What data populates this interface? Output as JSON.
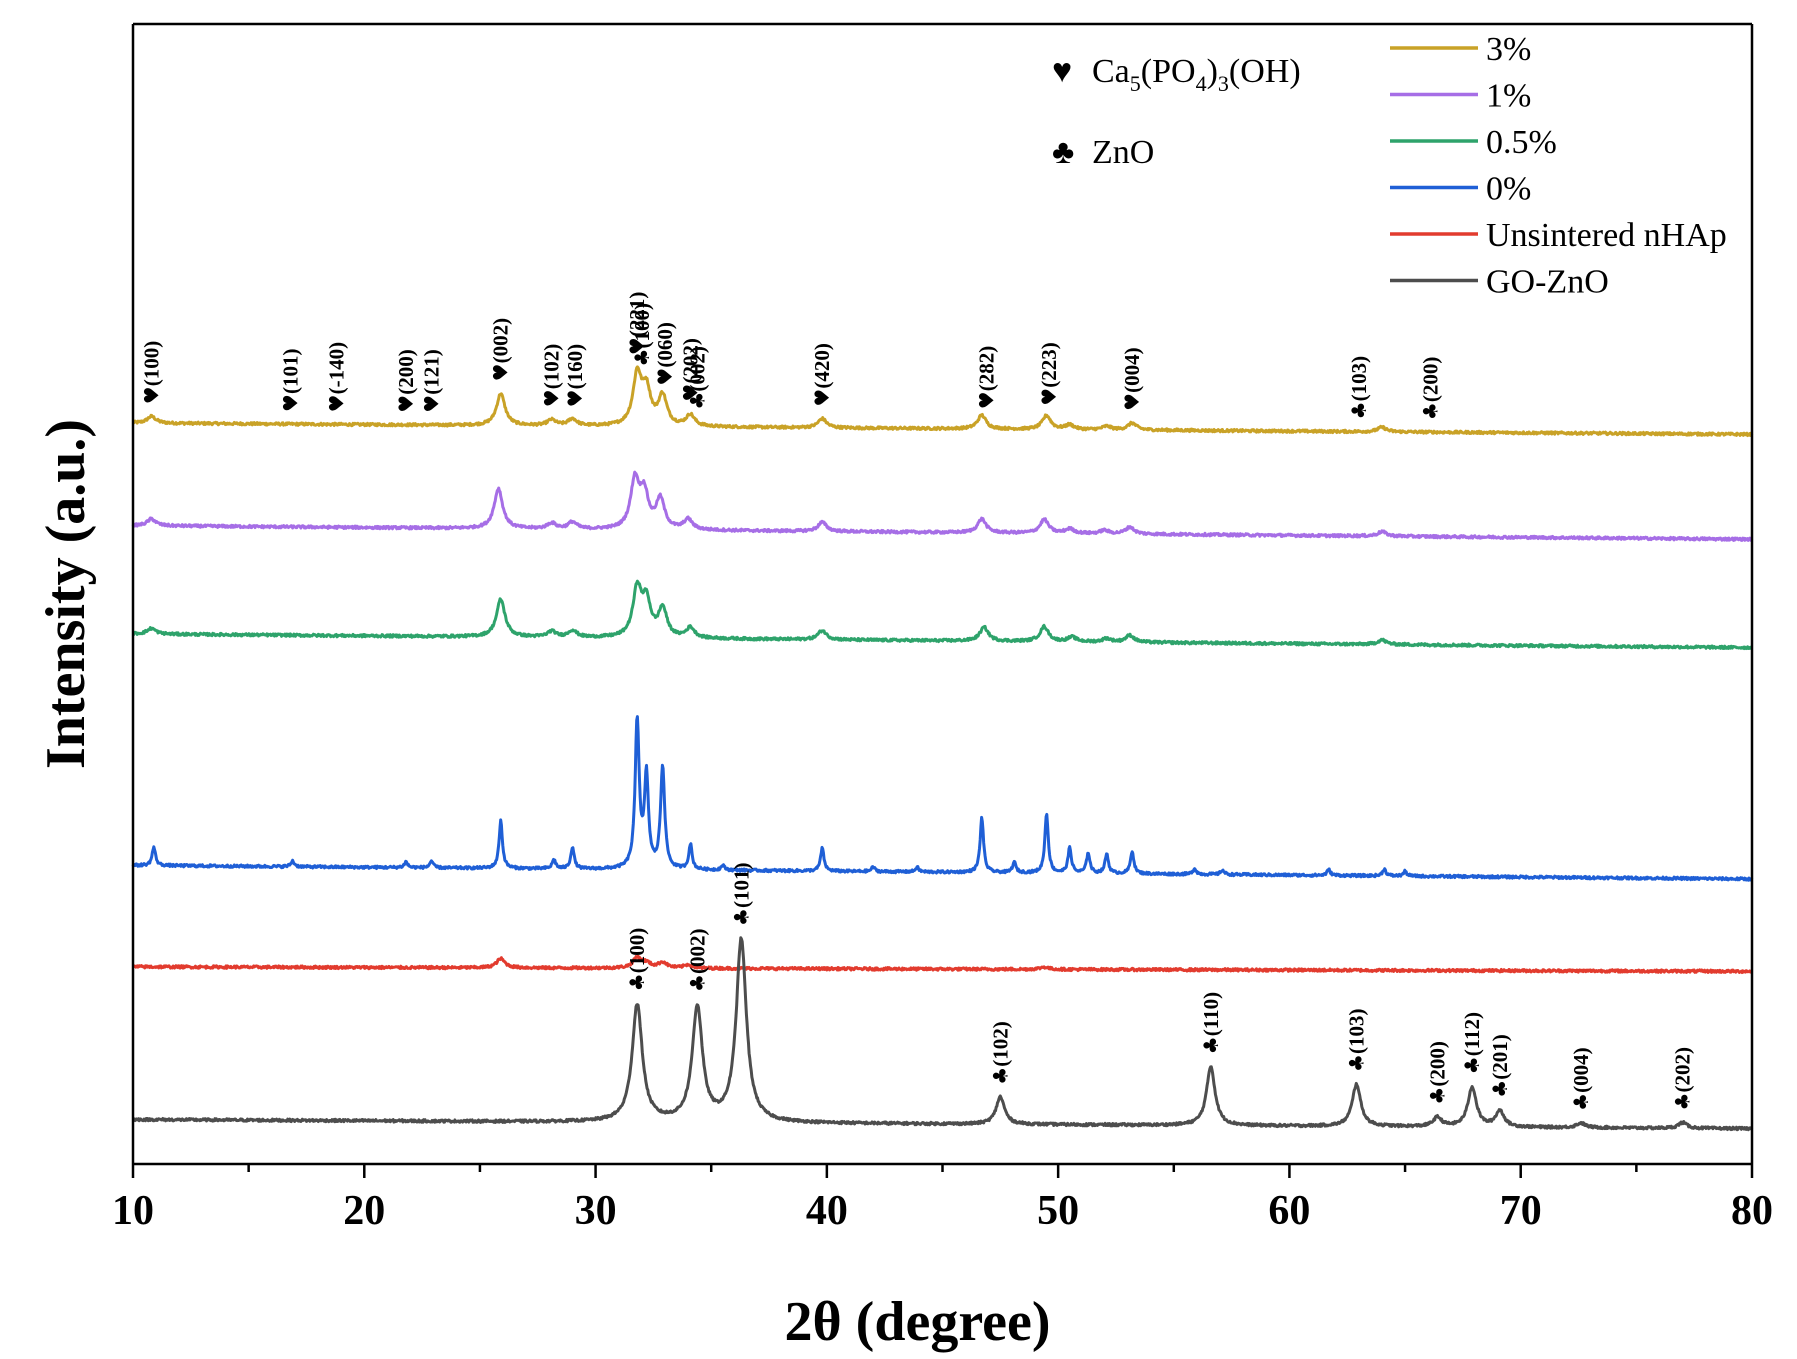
{
  "chart_data": {
    "type": "line",
    "xlabel": "2θ (degree)",
    "ylabel": "Intensity (a.u.)",
    "xlim": [
      10,
      80
    ],
    "ylim": [
      0,
      100
    ],
    "xticks": [
      10,
      20,
      30,
      40,
      50,
      60,
      70,
      80
    ],
    "grid": false,
    "legend_position": "top-right",
    "phase_legend": [
      {
        "symbol": "♥",
        "symbol_name": "heart-icon",
        "formula": [
          "Ca",
          "5",
          "(PO",
          "4",
          ")",
          "3",
          "(OH)"
        ]
      },
      {
        "symbol": "♣",
        "symbol_name": "club-icon",
        "label": "ZnO"
      }
    ],
    "series": [
      {
        "name": "3%",
        "color": "#c9a227",
        "baseline": 65,
        "slope": -1.0,
        "sharpness": 1,
        "peaks": [
          [
            10.8,
            0.6
          ],
          [
            25.9,
            2.8
          ],
          [
            28.1,
            0.5
          ],
          [
            29.0,
            0.6
          ],
          [
            31.8,
            4.4
          ],
          [
            32.2,
            3.0
          ],
          [
            32.9,
            2.6
          ],
          [
            34.1,
            1.0
          ],
          [
            39.8,
            0.8
          ],
          [
            46.7,
            1.2
          ],
          [
            49.5,
            1.2
          ],
          [
            50.5,
            0.4
          ],
          [
            52.1,
            0.3
          ],
          [
            53.2,
            0.6
          ],
          [
            64.0,
            0.4
          ]
        ],
        "annotations": [
          {
            "x": 10.8,
            "sym": "♥",
            "label": "(100)"
          },
          {
            "x": 16.8,
            "sym": "♥",
            "label": "(101)"
          },
          {
            "x": 18.8,
            "sym": "♥",
            "label": "(-140)"
          },
          {
            "x": 21.8,
            "sym": "♥",
            "label": "(200)"
          },
          {
            "x": 22.9,
            "sym": "♥",
            "label": "(121)"
          },
          {
            "x": 25.9,
            "sym": "♥",
            "label": "(002)"
          },
          {
            "x": 28.1,
            "sym": "♥",
            "label": "(102)"
          },
          {
            "x": 29.1,
            "sym": "♥",
            "label": "(160)"
          },
          {
            "x": 31.8,
            "sym": "♥",
            "label": "(221)"
          },
          {
            "x": 32.0,
            "sym": "♣",
            "label": "(100)"
          },
          {
            "x": 33.0,
            "sym": "♥",
            "label": "(060)"
          },
          {
            "x": 34.1,
            "sym": "♥",
            "label": "(202)"
          },
          {
            "x": 34.4,
            "sym": "♣",
            "label": "(002)"
          },
          {
            "x": 39.8,
            "sym": "♥",
            "label": "(420)"
          },
          {
            "x": 46.9,
            "sym": "♥",
            "label": "(282)"
          },
          {
            "x": 49.6,
            "sym": "♥",
            "label": "(223)"
          },
          {
            "x": 53.2,
            "sym": "♥",
            "label": "(004)"
          },
          {
            "x": 63.0,
            "sym": "♣",
            "label": "(103)"
          },
          {
            "x": 66.1,
            "sym": "♣",
            "label": "(200)"
          }
        ]
      },
      {
        "name": "1%",
        "color": "#a66ee6",
        "baseline": 56,
        "slope": -1.2,
        "sharpness": 1,
        "peaks": [
          [
            10.8,
            0.6
          ],
          [
            25.8,
            3.5
          ],
          [
            28.1,
            0.5
          ],
          [
            29.0,
            0.6
          ],
          [
            31.7,
            4.2
          ],
          [
            32.1,
            3.0
          ],
          [
            32.8,
            2.6
          ],
          [
            34.0,
            0.9
          ],
          [
            39.8,
            0.8
          ],
          [
            46.7,
            1.2
          ],
          [
            49.4,
            1.2
          ],
          [
            50.5,
            0.4
          ],
          [
            52.0,
            0.3
          ],
          [
            53.1,
            0.6
          ],
          [
            64.0,
            0.4
          ]
        ]
      },
      {
        "name": "0.5%",
        "color": "#2ea36b",
        "baseline": 46.5,
        "slope": -1.2,
        "sharpness": 1,
        "peaks": [
          [
            10.8,
            0.5
          ],
          [
            25.9,
            3.3
          ],
          [
            28.1,
            0.5
          ],
          [
            29.0,
            0.6
          ],
          [
            31.8,
            4.2
          ],
          [
            32.2,
            3.0
          ],
          [
            32.9,
            2.5
          ],
          [
            34.1,
            0.9
          ],
          [
            39.8,
            0.8
          ],
          [
            46.8,
            1.2
          ],
          [
            49.4,
            1.3
          ],
          [
            50.6,
            0.4
          ],
          [
            52.1,
            0.3
          ],
          [
            53.1,
            0.6
          ],
          [
            64.0,
            0.4
          ]
        ]
      },
      {
        "name": "0%",
        "color": "#1f5fd6",
        "baseline": 26.2,
        "slope": -1.2,
        "sharpness": 2.5,
        "peaks": [
          [
            10.9,
            1.6
          ],
          [
            16.9,
            0.5
          ],
          [
            21.8,
            0.5
          ],
          [
            22.9,
            0.6
          ],
          [
            25.9,
            4.2
          ],
          [
            28.2,
            0.8
          ],
          [
            29.0,
            1.9
          ],
          [
            31.8,
            13.0
          ],
          [
            32.2,
            8.0
          ],
          [
            32.9,
            9.0
          ],
          [
            34.1,
            2.2
          ],
          [
            35.5,
            0.4
          ],
          [
            39.8,
            2.0
          ],
          [
            42.0,
            0.4
          ],
          [
            43.9,
            0.4
          ],
          [
            46.7,
            4.8
          ],
          [
            48.1,
            0.9
          ],
          [
            49.5,
            5.2
          ],
          [
            50.5,
            2.2
          ],
          [
            51.3,
            1.8
          ],
          [
            52.1,
            1.7
          ],
          [
            53.2,
            2.0
          ],
          [
            55.9,
            0.5
          ],
          [
            57.1,
            0.4
          ],
          [
            61.7,
            0.5
          ],
          [
            64.1,
            0.6
          ],
          [
            65.0,
            0.4
          ]
        ]
      },
      {
        "name": "Unsintered nHAp",
        "color": "#e23b2e",
        "baseline": 17.3,
        "slope": -0.4,
        "sharpness": 1,
        "peaks": [
          [
            25.9,
            0.8
          ],
          [
            31.8,
            0.9
          ],
          [
            32.2,
            0.4
          ],
          [
            32.9,
            0.5
          ],
          [
            34.0,
            0.3
          ],
          [
            49.4,
            0.2
          ]
        ]
      },
      {
        "name": "GO-ZnO",
        "color": "#4d4d4d",
        "baseline": 3.9,
        "slope": -0.8,
        "sharpness": 1,
        "peaks": [
          [
            31.8,
            10.3
          ],
          [
            34.4,
            10.0
          ],
          [
            36.3,
            16.0
          ],
          [
            47.5,
            2.4
          ],
          [
            56.6,
            5.2
          ],
          [
            62.9,
            3.7
          ],
          [
            66.4,
            0.8
          ],
          [
            67.9,
            3.5
          ],
          [
            69.1,
            1.4
          ],
          [
            72.6,
            0.4
          ],
          [
            77.0,
            0.5
          ]
        ],
        "annotations": [
          {
            "x": 31.8,
            "sym": "♣",
            "label": "(100)"
          },
          {
            "x": 34.4,
            "sym": "♣",
            "label": "(002)"
          },
          {
            "x": 36.3,
            "sym": "♣",
            "label": "(101)"
          },
          {
            "x": 47.5,
            "sym": "♣",
            "label": "(102)"
          },
          {
            "x": 56.6,
            "sym": "♣",
            "label": "(110)"
          },
          {
            "x": 62.9,
            "sym": "♣",
            "label": "(103)"
          },
          {
            "x": 66.4,
            "sym": "♣",
            "label": "(200)"
          },
          {
            "x": 67.9,
            "sym": "♣",
            "label": "(112)"
          },
          {
            "x": 69.1,
            "sym": "♣",
            "label": "(201)"
          },
          {
            "x": 72.6,
            "sym": "♣",
            "label": "(004)"
          },
          {
            "x": 77.0,
            "sym": "♣",
            "label": "(202)"
          }
        ]
      }
    ]
  }
}
